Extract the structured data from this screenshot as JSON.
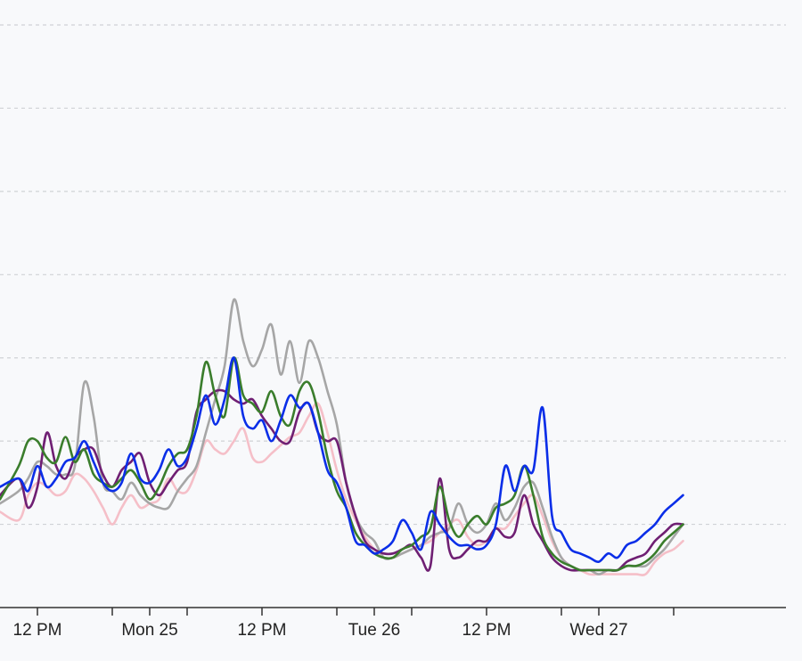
{
  "chart_data": {
    "type": "line",
    "title": "",
    "xlabel": "",
    "ylabel": "",
    "x_unit": "hours",
    "xlim": [
      0,
      84
    ],
    "ylim": [
      0,
      7.3
    ],
    "grid": true,
    "legend": "none",
    "x_ticks": [
      {
        "x": 4,
        "label": "12 PM"
      },
      {
        "x": 12,
        "label": ""
      },
      {
        "x": 16,
        "label": "Mon 25"
      },
      {
        "x": 20,
        "label": ""
      },
      {
        "x": 28,
        "label": "12 PM"
      },
      {
        "x": 36,
        "label": ""
      },
      {
        "x": 40,
        "label": "Tue 26"
      },
      {
        "x": 44,
        "label": ""
      },
      {
        "x": 52,
        "label": "12 PM"
      },
      {
        "x": 60,
        "label": ""
      },
      {
        "x": 64,
        "label": "Wed 27"
      },
      {
        "x": 72,
        "label": ""
      }
    ],
    "y_gridlines": [
      1,
      2,
      3,
      4,
      5,
      6,
      7
    ],
    "series": [
      {
        "color": "#f5bfc8",
        "x": [
          0,
          2,
          3,
          4,
          5,
          6,
          7,
          8,
          9,
          10,
          11,
          12,
          13,
          14,
          15,
          16,
          17,
          18,
          19,
          20,
          21,
          22,
          23,
          24,
          25,
          26,
          27,
          28,
          29,
          30,
          31,
          32,
          33,
          34,
          35,
          36,
          37,
          38,
          39,
          40,
          41,
          42,
          43,
          44,
          45,
          46,
          47,
          48,
          49,
          50,
          51,
          52,
          53,
          54,
          55,
          56,
          57,
          58,
          59,
          60,
          61,
          62,
          63,
          64,
          65,
          66,
          67,
          68,
          69,
          70,
          71,
          72,
          73
        ],
        "y": [
          1.15,
          1.05,
          1.35,
          1.5,
          1.45,
          1.35,
          1.4,
          1.6,
          1.55,
          1.4,
          1.2,
          1.0,
          1.2,
          1.35,
          1.2,
          1.25,
          1.3,
          1.55,
          1.4,
          1.4,
          1.65,
          2.0,
          1.9,
          1.85,
          2.0,
          2.15,
          1.8,
          1.75,
          1.85,
          1.95,
          2.05,
          2.1,
          2.3,
          2.45,
          2.1,
          1.65,
          1.3,
          1.05,
          0.85,
          0.7,
          0.6,
          0.6,
          0.65,
          0.7,
          0.75,
          0.8,
          0.9,
          1.0,
          1.05,
          0.85,
          0.75,
          0.8,
          0.95,
          0.95,
          1.1,
          1.25,
          1.35,
          1.1,
          0.8,
          0.6,
          0.5,
          0.45,
          0.4,
          0.4,
          0.4,
          0.4,
          0.4,
          0.4,
          0.4,
          0.55,
          0.65,
          0.7,
          0.8
        ]
      },
      {
        "color": "#a6a6a6",
        "x": [
          0,
          2,
          3,
          4,
          5,
          6,
          7,
          8,
          9,
          10,
          11,
          12,
          13,
          14,
          15,
          16,
          17,
          18,
          19,
          20,
          21,
          22,
          23,
          24,
          25,
          26,
          27,
          28,
          29,
          30,
          31,
          32,
          33,
          34,
          35,
          36,
          37,
          38,
          39,
          40,
          41,
          42,
          43,
          44,
          45,
          46,
          47,
          48,
          49,
          50,
          51,
          52,
          53,
          54,
          55,
          56,
          57,
          58,
          59,
          60,
          61,
          62,
          63,
          64,
          65,
          66,
          67,
          68,
          69,
          70,
          71,
          72,
          73
        ],
        "y": [
          1.25,
          1.4,
          1.55,
          1.75,
          1.7,
          1.6,
          1.6,
          1.7,
          2.7,
          2.3,
          1.5,
          1.4,
          1.3,
          1.5,
          1.35,
          1.25,
          1.2,
          1.2,
          1.4,
          1.55,
          1.7,
          2.1,
          2.5,
          2.9,
          3.7,
          3.2,
          2.9,
          3.1,
          3.4,
          2.8,
          3.2,
          2.7,
          3.2,
          3.0,
          2.6,
          2.2,
          1.5,
          1.1,
          0.9,
          0.8,
          0.6,
          0.6,
          0.65,
          0.7,
          0.75,
          0.85,
          0.9,
          0.95,
          1.25,
          1.0,
          0.9,
          1.0,
          1.25,
          1.05,
          1.2,
          1.45,
          1.5,
          1.2,
          0.85,
          0.6,
          0.5,
          0.45,
          0.45,
          0.4,
          0.45,
          0.45,
          0.5,
          0.5,
          0.5,
          0.6,
          0.7,
          0.85,
          1.0
        ]
      },
      {
        "color": "#6f1f73",
        "x": [
          0,
          2,
          3,
          4,
          5,
          6,
          7,
          8,
          9,
          10,
          11,
          12,
          13,
          14,
          15,
          16,
          17,
          18,
          19,
          20,
          21,
          22,
          23,
          24,
          25,
          26,
          27,
          28,
          29,
          30,
          31,
          32,
          33,
          34,
          35,
          36,
          37,
          38,
          39,
          40,
          41,
          42,
          43,
          44,
          45,
          46,
          47,
          48,
          49,
          50,
          51,
          52,
          53,
          54,
          55,
          56,
          57,
          58,
          59,
          60,
          61,
          62,
          63,
          64,
          65,
          66,
          67,
          68,
          69,
          70,
          71,
          72,
          73
        ],
        "y": [
          1.35,
          1.55,
          1.2,
          1.45,
          2.1,
          1.7,
          1.55,
          1.8,
          1.9,
          1.9,
          1.6,
          1.45,
          1.65,
          1.75,
          1.85,
          1.5,
          1.35,
          1.5,
          1.65,
          1.75,
          2.35,
          2.5,
          2.6,
          2.6,
          2.5,
          2.45,
          2.5,
          2.3,
          2.15,
          2.0,
          2.0,
          2.35,
          2.45,
          2.1,
          2.0,
          2.0,
          1.5,
          1.1,
          0.8,
          0.7,
          0.65,
          0.65,
          0.7,
          0.75,
          0.6,
          0.5,
          1.55,
          0.7,
          0.6,
          0.7,
          0.8,
          0.8,
          0.95,
          0.85,
          0.9,
          1.35,
          1.0,
          0.8,
          0.6,
          0.5,
          0.45,
          0.45,
          0.45,
          0.45,
          0.45,
          0.45,
          0.55,
          0.6,
          0.65,
          0.8,
          0.9,
          1.0,
          1.0
        ]
      },
      {
        "color": "#3a7d2c",
        "x": [
          0,
          2,
          3,
          4,
          5,
          6,
          7,
          8,
          9,
          10,
          11,
          12,
          13,
          14,
          15,
          16,
          17,
          18,
          19,
          20,
          21,
          22,
          23,
          24,
          25,
          26,
          27,
          28,
          29,
          30,
          31,
          32,
          33,
          34,
          35,
          36,
          37,
          38,
          39,
          40,
          41,
          42,
          43,
          44,
          45,
          46,
          47,
          48,
          49,
          50,
          51,
          52,
          53,
          54,
          55,
          56,
          57,
          58,
          59,
          60,
          61,
          62,
          63,
          64,
          65,
          66,
          67,
          68,
          69,
          70,
          71,
          72,
          73
        ],
        "y": [
          1.3,
          1.7,
          2.0,
          2.0,
          1.8,
          1.75,
          2.05,
          1.75,
          1.9,
          1.6,
          1.5,
          1.45,
          1.55,
          1.65,
          1.5,
          1.3,
          1.45,
          1.7,
          1.85,
          1.9,
          2.3,
          2.95,
          2.55,
          2.3,
          3.0,
          2.55,
          2.45,
          2.35,
          2.6,
          2.3,
          2.2,
          2.6,
          2.7,
          2.35,
          1.8,
          1.4,
          1.2,
          0.9,
          0.75,
          0.65,
          0.6,
          0.6,
          0.7,
          0.75,
          0.85,
          0.95,
          1.45,
          1.05,
          0.85,
          1.0,
          1.1,
          1.0,
          1.2,
          1.25,
          1.35,
          1.7,
          1.35,
          0.85,
          0.65,
          0.55,
          0.5,
          0.45,
          0.45,
          0.45,
          0.45,
          0.45,
          0.5,
          0.5,
          0.55,
          0.65,
          0.8,
          0.9,
          1.0
        ]
      },
      {
        "color": "#0a2ee8",
        "x": [
          0,
          2,
          3,
          4,
          5,
          6,
          7,
          8,
          9,
          10,
          11,
          12,
          13,
          14,
          15,
          16,
          17,
          18,
          19,
          20,
          21,
          22,
          23,
          24,
          25,
          26,
          27,
          28,
          29,
          30,
          31,
          32,
          33,
          34,
          35,
          36,
          37,
          38,
          39,
          40,
          41,
          42,
          43,
          44,
          45,
          46,
          47,
          48,
          49,
          50,
          51,
          52,
          53,
          54,
          55,
          56,
          57,
          58,
          59,
          60,
          61,
          62,
          63,
          64,
          65,
          66,
          67,
          68,
          69,
          70,
          71,
          72,
          73
        ],
        "y": [
          1.45,
          1.55,
          1.4,
          1.7,
          1.45,
          1.55,
          1.75,
          1.8,
          2.0,
          1.75,
          1.5,
          1.4,
          1.5,
          1.85,
          1.55,
          1.5,
          1.65,
          1.9,
          1.7,
          1.8,
          2.15,
          2.55,
          2.2,
          2.5,
          3.0,
          2.3,
          2.15,
          2.25,
          2.0,
          2.25,
          2.55,
          2.4,
          2.45,
          2.1,
          1.65,
          1.5,
          1.2,
          0.8,
          0.75,
          0.65,
          0.7,
          0.8,
          1.05,
          0.9,
          0.7,
          1.15,
          1.0,
          0.85,
          0.75,
          0.75,
          0.7,
          0.75,
          1.0,
          1.7,
          1.4,
          1.7,
          1.65,
          2.4,
          1.1,
          0.9,
          0.7,
          0.65,
          0.6,
          0.55,
          0.65,
          0.6,
          0.75,
          0.8,
          0.9,
          1.0,
          1.15,
          1.25,
          1.35
        ]
      }
    ]
  }
}
